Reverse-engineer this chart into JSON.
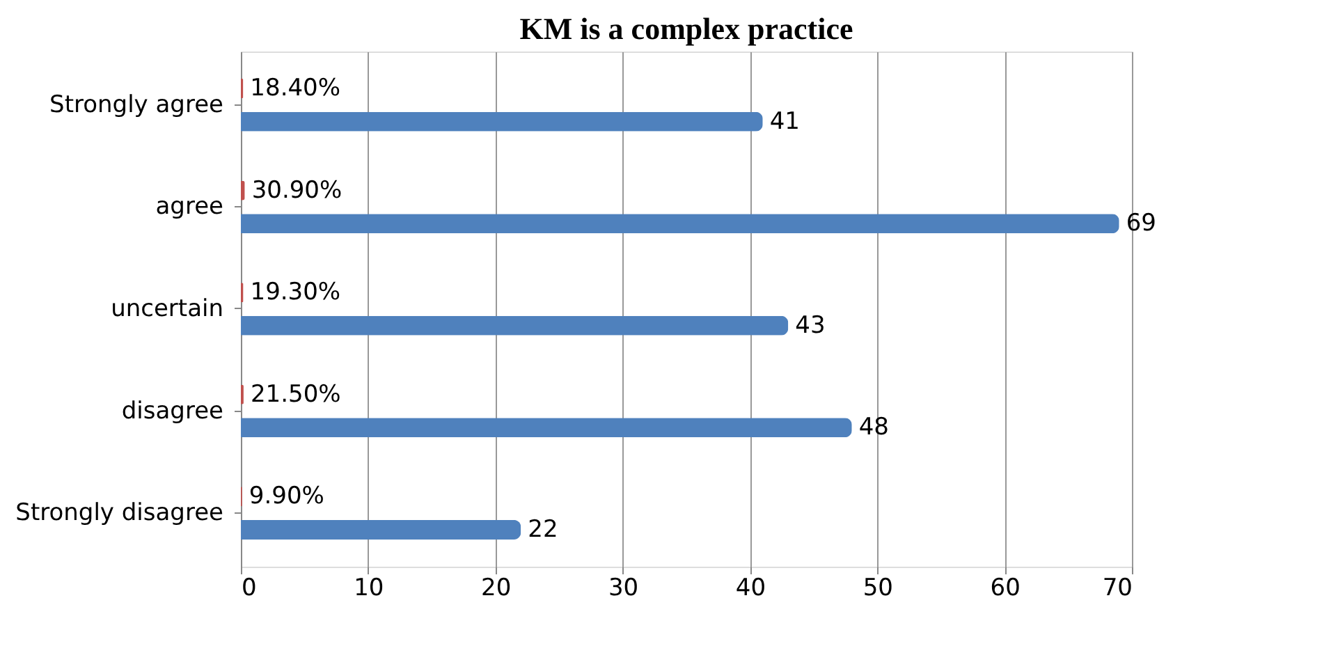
{
  "chart_data": {
    "type": "bar",
    "orientation": "horizontal",
    "title": "KM is a complex practice",
    "categories": [
      "Strongly agree",
      "agree",
      "uncertain",
      "disagree",
      "Strongly disagree"
    ],
    "series": [
      {
        "color": "#c0504d",
        "values": [
          0.184,
          0.309,
          0.193,
          0.215,
          0.099
        ],
        "value_labels": [
          "18.40%",
          "30.90%",
          "19.30%",
          "21.50%",
          "9.90%"
        ]
      },
      {
        "color": "#4f81bd",
        "values": [
          41,
          69,
          43,
          48,
          22
        ],
        "value_labels": [
          "41",
          "69",
          "43",
          "48",
          "22"
        ]
      }
    ],
    "xlim": [
      0,
      70
    ],
    "xticks": [
      0,
      10,
      20,
      30,
      40,
      50,
      60,
      70
    ],
    "grid": "x",
    "legend": false
  }
}
